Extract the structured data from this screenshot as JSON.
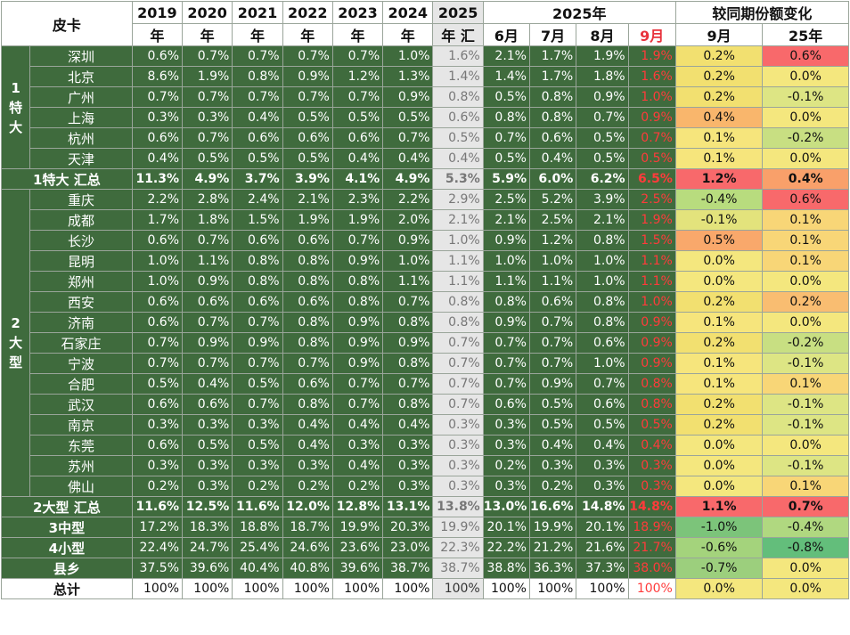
{
  "header": {
    "category": "皮卡",
    "years": [
      "2019",
      "2020",
      "2021",
      "2022",
      "2023",
      "2024",
      "2025"
    ],
    "years_suffix": [
      "年",
      "年",
      "年",
      "年",
      "年",
      "年",
      "年 汇"
    ],
    "group2025": "2025年",
    "months": [
      "6月",
      "7月",
      "8月",
      "9月"
    ],
    "change_title": "较同期份额变化",
    "change_cols": [
      "9月",
      "25年"
    ]
  },
  "groups": [
    {
      "label": "1特大",
      "rows": 6
    },
    {
      "label": "2大型",
      "rows": 15
    }
  ],
  "rows": [
    {
      "name": "深圳",
      "vals": [
        "0.6%",
        "0.7%",
        "0.7%",
        "0.7%",
        "0.7%",
        "1.0%",
        "1.6%",
        "2.1%",
        "1.7%",
        "1.9%",
        "1.9%"
      ],
      "chg": [
        "0.2%",
        "0.6%"
      ],
      "chgc": [
        "#f2e070",
        "#f8696b"
      ],
      "bold": false
    },
    {
      "name": "北京",
      "vals": [
        "8.6%",
        "1.9%",
        "0.8%",
        "0.9%",
        "1.2%",
        "1.3%",
        "1.4%",
        "1.4%",
        "1.7%",
        "1.8%",
        "1.6%"
      ],
      "chg": [
        "0.2%",
        "0.0%"
      ],
      "chgc": [
        "#f2e070",
        "#f4e77e"
      ],
      "bold": false
    },
    {
      "name": "广州",
      "vals": [
        "0.7%",
        "0.7%",
        "0.7%",
        "0.7%",
        "0.7%",
        "0.9%",
        "0.8%",
        "0.5%",
        "0.8%",
        "0.9%",
        "1.0%"
      ],
      "chg": [
        "0.2%",
        "-0.1%"
      ],
      "chgc": [
        "#f2e070",
        "#dde584"
      ],
      "bold": false
    },
    {
      "name": "上海",
      "vals": [
        "0.3%",
        "0.3%",
        "0.4%",
        "0.5%",
        "0.5%",
        "0.5%",
        "0.6%",
        "0.8%",
        "0.8%",
        "0.7%",
        "0.9%"
      ],
      "chg": [
        "0.4%",
        "0.0%"
      ],
      "chgc": [
        "#f9b66c",
        "#f4e77e"
      ],
      "bold": false
    },
    {
      "name": "杭州",
      "vals": [
        "0.6%",
        "0.7%",
        "0.6%",
        "0.6%",
        "0.6%",
        "0.7%",
        "0.5%",
        "0.7%",
        "0.6%",
        "0.5%",
        "0.7%"
      ],
      "chg": [
        "0.1%",
        "-0.2%"
      ],
      "chgc": [
        "#f6e57c",
        "#c8df82"
      ],
      "bold": false
    },
    {
      "name": "天津",
      "vals": [
        "0.4%",
        "0.5%",
        "0.5%",
        "0.5%",
        "0.4%",
        "0.4%",
        "0.4%",
        "0.5%",
        "0.4%",
        "0.5%",
        "0.5%"
      ],
      "chg": [
        "0.1%",
        "0.0%"
      ],
      "chgc": [
        "#f6e57c",
        "#f4e77e"
      ],
      "bold": false
    },
    {
      "name": "1特大 汇总",
      "vals": [
        "11.3%",
        "4.9%",
        "3.7%",
        "3.9%",
        "4.1%",
        "4.9%",
        "5.3%",
        "5.9%",
        "6.0%",
        "6.2%",
        "6.5%"
      ],
      "chg": [
        "1.2%",
        "0.4%"
      ],
      "chgc": [
        "#f8696b",
        "#f9a06a"
      ],
      "bold": true
    },
    {
      "name": "重庆",
      "vals": [
        "2.2%",
        "2.8%",
        "2.4%",
        "2.1%",
        "2.3%",
        "2.2%",
        "2.9%",
        "2.5%",
        "5.2%",
        "3.9%",
        "2.5%"
      ],
      "chg": [
        "-0.4%",
        "0.6%"
      ],
      "chgc": [
        "#b8dc7e",
        "#f8696b"
      ],
      "bold": false
    },
    {
      "name": "成都",
      "vals": [
        "1.7%",
        "1.8%",
        "1.5%",
        "1.9%",
        "1.9%",
        "2.0%",
        "2.1%",
        "2.1%",
        "2.5%",
        "2.1%",
        "1.9%"
      ],
      "chg": [
        "-0.1%",
        "0.1%"
      ],
      "chgc": [
        "#e3e37c",
        "#f8d677"
      ],
      "bold": false
    },
    {
      "name": "长沙",
      "vals": [
        "0.6%",
        "0.7%",
        "0.6%",
        "0.6%",
        "0.7%",
        "0.9%",
        "1.0%",
        "0.9%",
        "1.2%",
        "0.8%",
        "1.5%"
      ],
      "chg": [
        "0.5%",
        "0.1%"
      ],
      "chgc": [
        "#f9a86b",
        "#f8d677"
      ],
      "bold": false
    },
    {
      "name": "昆明",
      "vals": [
        "1.0%",
        "1.1%",
        "0.8%",
        "0.8%",
        "0.9%",
        "1.0%",
        "1.1%",
        "1.0%",
        "1.0%",
        "1.0%",
        "1.1%"
      ],
      "chg": [
        "0.0%",
        "0.1%"
      ],
      "chgc": [
        "#f4e77e",
        "#f8d677"
      ],
      "bold": false
    },
    {
      "name": "郑州",
      "vals": [
        "1.0%",
        "0.9%",
        "0.8%",
        "0.8%",
        "0.8%",
        "1.1%",
        "1.1%",
        "1.1%",
        "1.1%",
        "1.0%",
        "1.1%"
      ],
      "chg": [
        "0.0%",
        "0.0%"
      ],
      "chgc": [
        "#f4e77e",
        "#f4e77e"
      ],
      "bold": false
    },
    {
      "name": "西安",
      "vals": [
        "0.6%",
        "0.6%",
        "0.6%",
        "0.6%",
        "0.8%",
        "0.7%",
        "0.8%",
        "0.8%",
        "0.6%",
        "0.8%",
        "1.0%"
      ],
      "chg": [
        "0.2%",
        "0.2%"
      ],
      "chgc": [
        "#f2e070",
        "#f9bd71"
      ],
      "bold": false
    },
    {
      "name": "济南",
      "vals": [
        "0.6%",
        "0.7%",
        "0.7%",
        "0.8%",
        "0.9%",
        "0.8%",
        "0.8%",
        "0.9%",
        "0.7%",
        "0.8%",
        "0.9%"
      ],
      "chg": [
        "0.1%",
        "0.0%"
      ],
      "chgc": [
        "#f6e57c",
        "#f4e77e"
      ],
      "bold": false
    },
    {
      "name": "石家庄",
      "vals": [
        "0.7%",
        "0.9%",
        "0.9%",
        "0.8%",
        "0.9%",
        "0.9%",
        "0.7%",
        "0.7%",
        "0.7%",
        "0.6%",
        "0.9%"
      ],
      "chg": [
        "0.2%",
        "-0.2%"
      ],
      "chgc": [
        "#f2e070",
        "#c8df82"
      ],
      "bold": false
    },
    {
      "name": "宁波",
      "vals": [
        "0.7%",
        "0.7%",
        "0.7%",
        "0.7%",
        "0.9%",
        "0.8%",
        "0.7%",
        "0.7%",
        "0.7%",
        "1.0%",
        "0.9%"
      ],
      "chg": [
        "0.1%",
        "-0.1%"
      ],
      "chgc": [
        "#f6e57c",
        "#dde584"
      ],
      "bold": false
    },
    {
      "name": "合肥",
      "vals": [
        "0.5%",
        "0.4%",
        "0.5%",
        "0.6%",
        "0.7%",
        "0.7%",
        "0.7%",
        "0.7%",
        "0.9%",
        "0.7%",
        "0.8%"
      ],
      "chg": [
        "0.1%",
        "0.1%"
      ],
      "chgc": [
        "#f6e57c",
        "#f8d677"
      ],
      "bold": false
    },
    {
      "name": "武汉",
      "vals": [
        "0.6%",
        "0.6%",
        "0.7%",
        "0.8%",
        "0.7%",
        "0.8%",
        "0.7%",
        "0.6%",
        "0.5%",
        "0.6%",
        "0.8%"
      ],
      "chg": [
        "0.2%",
        "-0.1%"
      ],
      "chgc": [
        "#f2e070",
        "#dde584"
      ],
      "bold": false
    },
    {
      "name": "南京",
      "vals": [
        "0.3%",
        "0.3%",
        "0.3%",
        "0.4%",
        "0.4%",
        "0.4%",
        "0.3%",
        "0.3%",
        "0.5%",
        "0.5%",
        "0.5%"
      ],
      "chg": [
        "0.2%",
        "-0.1%"
      ],
      "chgc": [
        "#f2e070",
        "#dde584"
      ],
      "bold": false
    },
    {
      "name": "东莞",
      "vals": [
        "0.6%",
        "0.5%",
        "0.5%",
        "0.4%",
        "0.3%",
        "0.3%",
        "0.3%",
        "0.3%",
        "0.4%",
        "0.4%",
        "0.4%"
      ],
      "chg": [
        "0.0%",
        "0.0%"
      ],
      "chgc": [
        "#f4e77e",
        "#f4e77e"
      ],
      "bold": false
    },
    {
      "name": "苏州",
      "vals": [
        "0.3%",
        "0.3%",
        "0.3%",
        "0.3%",
        "0.4%",
        "0.3%",
        "0.3%",
        "0.2%",
        "0.3%",
        "0.3%",
        "0.3%"
      ],
      "chg": [
        "0.0%",
        "-0.1%"
      ],
      "chgc": [
        "#f4e77e",
        "#dde584"
      ],
      "bold": false
    },
    {
      "name": "佛山",
      "vals": [
        "0.2%",
        "0.3%",
        "0.2%",
        "0.2%",
        "0.2%",
        "0.3%",
        "0.3%",
        "0.3%",
        "0.2%",
        "0.3%",
        "0.3%"
      ],
      "chg": [
        "0.0%",
        "0.1%"
      ],
      "chgc": [
        "#f4e77e",
        "#f8d677"
      ],
      "bold": false
    },
    {
      "name": "2大型 汇总",
      "vals": [
        "11.6%",
        "12.5%",
        "11.6%",
        "12.0%",
        "12.8%",
        "13.1%",
        "13.8%",
        "13.0%",
        "16.6%",
        "14.8%",
        "14.8%"
      ],
      "chg": [
        "1.1%",
        "0.7%"
      ],
      "chgc": [
        "#f8696b",
        "#f8696b"
      ],
      "bold": true
    },
    {
      "name": "3中型",
      "vals": [
        "17.2%",
        "18.3%",
        "18.8%",
        "18.7%",
        "19.9%",
        "20.3%",
        "19.9%",
        "20.1%",
        "19.9%",
        "20.1%",
        "18.9%"
      ],
      "chg": [
        "-1.0%",
        "-0.4%"
      ],
      "chgc": [
        "#7cc47a",
        "#b0d880"
      ],
      "bold": false
    },
    {
      "name": "4小型",
      "vals": [
        "22.4%",
        "24.7%",
        "25.4%",
        "24.6%",
        "23.6%",
        "23.0%",
        "22.3%",
        "22.2%",
        "21.2%",
        "21.6%",
        "21.7%"
      ],
      "chg": [
        "-0.6%",
        "-0.8%"
      ],
      "chgc": [
        "#a4d37c",
        "#63be7b"
      ],
      "bold": false
    },
    {
      "name": "县乡",
      "vals": [
        "37.5%",
        "39.6%",
        "40.4%",
        "40.8%",
        "39.6%",
        "38.7%",
        "38.7%",
        "38.8%",
        "36.3%",
        "37.3%",
        "38.0%"
      ],
      "chg": [
        "-0.7%",
        "0.0%"
      ],
      "chgc": [
        "#9ccf7d",
        "#f4e77e"
      ],
      "bold": false
    },
    {
      "name": "总计",
      "vals": [
        "100%",
        "100%",
        "100%",
        "100%",
        "100%",
        "100%",
        "100%",
        "100%",
        "100%",
        "100%",
        "100%"
      ],
      "chg": [
        "0.0%",
        "0.0%"
      ],
      "chgc": [
        "#f4e77e",
        "#f4e77e"
      ],
      "bold": false
    }
  ]
}
